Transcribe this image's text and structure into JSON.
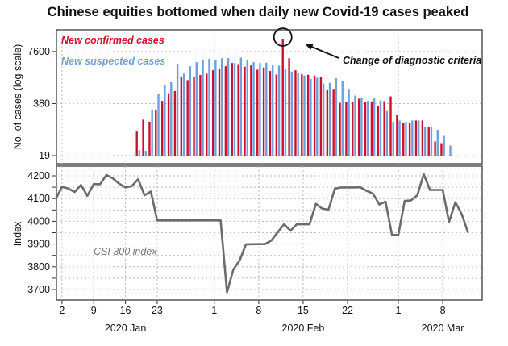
{
  "chart_data": [
    {
      "type": "bar",
      "title": "Chinese equities bottomed when daily new Covid-19 cases peaked",
      "ylabel": "No. of cases (log scale)",
      "yscale": "log",
      "yticks": [
        19,
        380,
        7600
      ],
      "ylim": [
        19,
        16000
      ],
      "grid": true,
      "legend_placement": "top-left",
      "annotation": "Change of diagnostic criteria",
      "annotation_date": "2020-02-12",
      "series": [
        {
          "name": "New confirmed cases",
          "color": "#d0102a",
          "start": "2020-01-20",
          "values": [
            76,
            151,
            134,
            259,
            443,
            692,
            782,
            1764,
            1468,
            1738,
            1966,
            2124,
            2594,
            2800,
            3266,
            3927,
            3690,
            3163,
            3418,
            2673,
            3020,
            2477,
            2028,
            15880,
            5177,
            2594,
            2060,
            1996,
            1906,
            1738,
            845,
            885,
            398,
            411,
            411,
            501,
            411,
            430,
            336,
            436,
            575,
            202,
            124,
            124,
            144,
            144,
            100,
            43,
            39
          ]
        },
        {
          "name": "New suspected cases",
          "color": "#6fa0dc",
          "start": "2020-01-20",
          "values": [
            26,
            25,
            259,
            681,
            1114,
            1300,
            3810,
            2124,
            3266,
            4111,
            4797,
            5020,
            4578,
            5177,
            5177,
            3927,
            5338,
            4797,
            4111,
            3927,
            3990,
            3525,
            3365,
            2800,
            2399,
            2291,
            1906,
            1563,
            1686,
            1202,
            1260,
            1636,
            1361,
            885,
            603,
            541,
            443,
            509,
            457,
            247,
            134,
            144,
            132,
            144,
            144,
            101,
            101,
            84,
            59,
            34
          ]
        }
      ]
    },
    {
      "type": "line",
      "ylabel": "Index",
      "yticks": [
        3700,
        3800,
        3900,
        4000,
        4100,
        4200
      ],
      "ylim": [
        3700,
        4200
      ],
      "grid": true,
      "xticks": [
        {
          "date": "2020-01-02",
          "label": "2"
        },
        {
          "date": "2020-01-09",
          "label": "9"
        },
        {
          "date": "2020-01-16",
          "label": "16"
        },
        {
          "date": "2020-01-23",
          "label": "23"
        },
        {
          "date": "2020-02-01",
          "label": "1"
        },
        {
          "date": "2020-02-08",
          "label": "8"
        },
        {
          "date": "2020-02-15",
          "label": "15"
        },
        {
          "date": "2020-02-22",
          "label": "22"
        },
        {
          "date": "2020-03-01",
          "label": "1"
        },
        {
          "date": "2020-03-08",
          "label": "8"
        }
      ],
      "month_labels": [
        {
          "date": "2020-01-16",
          "label": "2020 Jan"
        },
        {
          "date": "2020-02-15",
          "label": "2020 Feb"
        },
        {
          "date": "2020-03-08",
          "label": "2020 Mar"
        }
      ],
      "series": [
        {
          "name": "CSI 300 index",
          "color": "#6b6b6b",
          "points": [
            [
              "2019-12-31",
              4097
            ],
            [
              "2020-01-02",
              4152
            ],
            [
              "2020-01-03",
              4144
            ],
            [
              "2020-01-06",
              4129
            ],
            [
              "2020-01-07",
              4160
            ],
            [
              "2020-01-08",
              4112
            ],
            [
              "2020-01-09",
              4164
            ],
            [
              "2020-01-10",
              4163
            ],
            [
              "2020-01-13",
              4204
            ],
            [
              "2020-01-14",
              4189
            ],
            [
              "2020-01-15",
              4166
            ],
            [
              "2020-01-16",
              4149
            ],
            [
              "2020-01-17",
              4155
            ],
            [
              "2020-01-20",
              4185
            ],
            [
              "2020-01-21",
              4115
            ],
            [
              "2020-01-22",
              4131
            ],
            [
              "2020-01-23",
              4004
            ],
            [
              "2020-02-02",
              4004
            ],
            [
              "2020-02-03",
              3688
            ],
            [
              "2020-02-04",
              3788
            ],
            [
              "2020-02-05",
              3828
            ],
            [
              "2020-02-06",
              3899
            ],
            [
              "2020-02-09",
              3900
            ],
            [
              "2020-02-10",
              3916
            ],
            [
              "2020-02-11",
              3952
            ],
            [
              "2020-02-12",
              3987
            ],
            [
              "2020-02-13",
              3959
            ],
            [
              "2020-02-14",
              3987
            ],
            [
              "2020-02-16",
              3987
            ],
            [
              "2020-02-17",
              4077
            ],
            [
              "2020-02-18",
              4056
            ],
            [
              "2020-02-19",
              4051
            ],
            [
              "2020-02-20",
              4144
            ],
            [
              "2020-02-21",
              4149
            ],
            [
              "2020-02-23",
              4149
            ],
            [
              "2020-02-24",
              4150
            ],
            [
              "2020-02-25",
              4134
            ],
            [
              "2020-02-26",
              4122
            ],
            [
              "2020-02-27",
              4074
            ],
            [
              "2020-02-28",
              4086
            ],
            [
              "2020-02-29",
              3940
            ],
            [
              "2020-03-01",
              3940
            ],
            [
              "2020-03-02",
              4090
            ],
            [
              "2020-03-03",
              4092
            ],
            [
              "2020-03-04",
              4115
            ],
            [
              "2020-03-05",
              4207
            ],
            [
              "2020-03-06",
              4138
            ],
            [
              "2020-03-08",
              4138
            ],
            [
              "2020-03-09",
              3997
            ],
            [
              "2020-03-10",
              4084
            ],
            [
              "2020-03-11",
              4031
            ],
            [
              "2020-03-12",
              3950
            ]
          ]
        }
      ]
    }
  ]
}
